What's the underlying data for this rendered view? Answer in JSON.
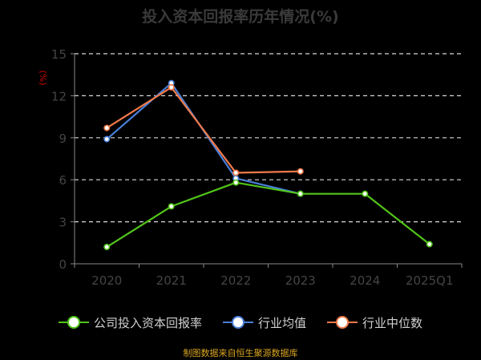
{
  "chart_data": {
    "type": "line",
    "title": "投入资本回报率历年情况(%)",
    "ylabel": "(%)",
    "categories": [
      "2020",
      "2021",
      "2022",
      "2023",
      "2024",
      "2025Q1"
    ],
    "ylim": [
      0,
      15
    ],
    "yticks": [
      "0",
      "3",
      "6",
      "9",
      "12",
      "15"
    ],
    "grid": true,
    "legend_position": "bottom",
    "series": [
      {
        "name": "公司投入资本回报率",
        "color": "#52c41a",
        "values": [
          1.2,
          4.1,
          5.8,
          5.0,
          5.0,
          1.4
        ]
      },
      {
        "name": "行业均值",
        "color": "#4a7fd8",
        "values": [
          8.9,
          12.9,
          6.1,
          5.0,
          null,
          null
        ]
      },
      {
        "name": "行业中位数",
        "color": "#f07a4a",
        "values": [
          9.7,
          12.6,
          6.5,
          6.6,
          null,
          null
        ]
      }
    ]
  },
  "footer": "制图数据来自恒生聚源数据库"
}
